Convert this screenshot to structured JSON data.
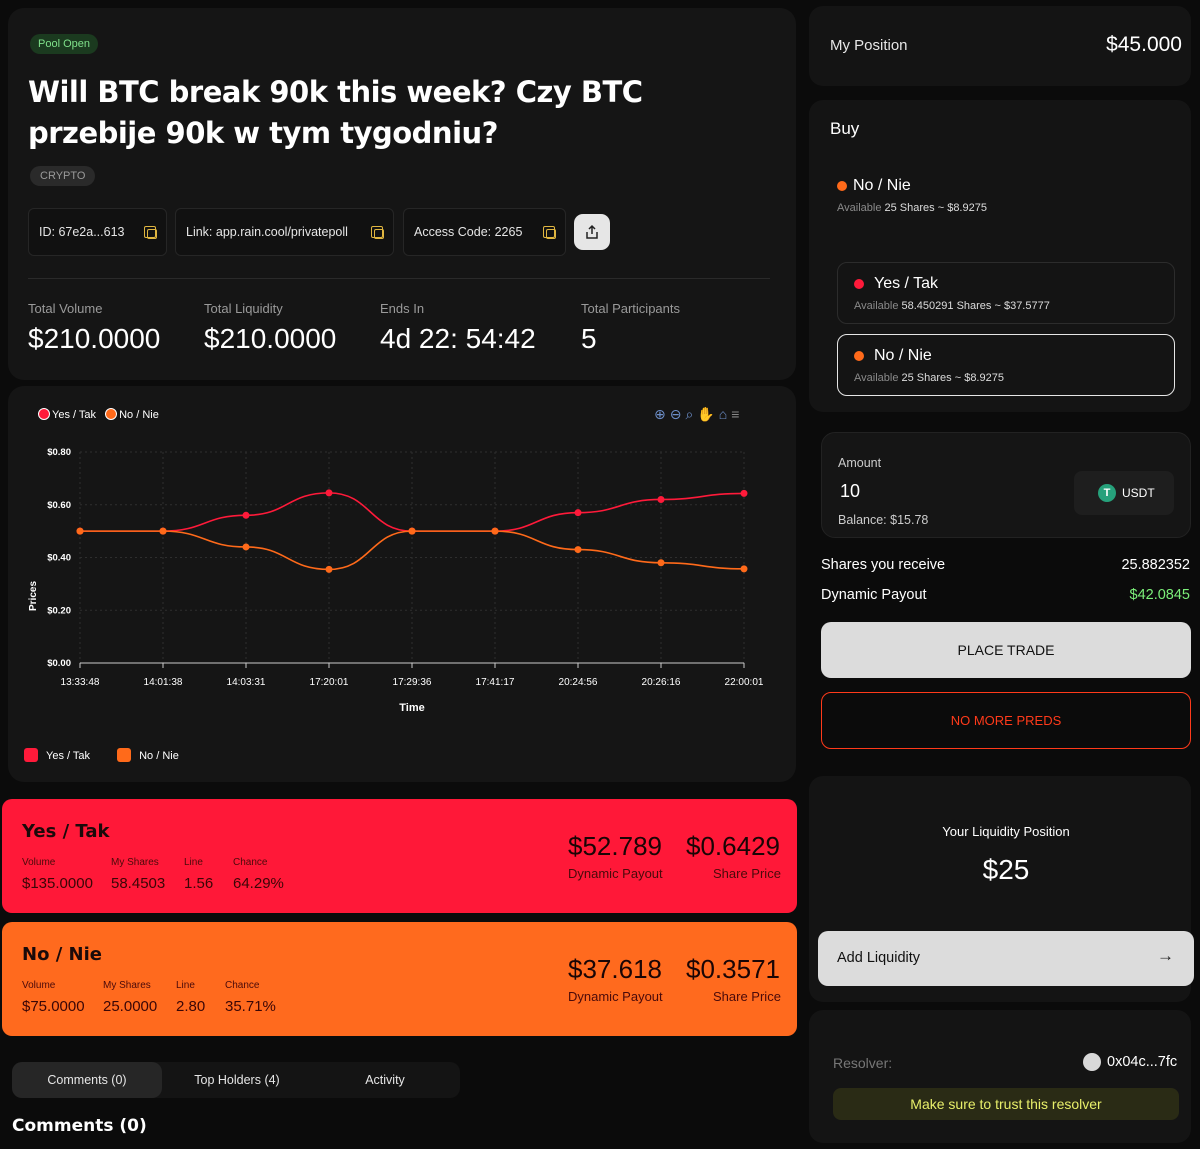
{
  "market": {
    "status_badge": "Pool Open",
    "title": "Will BTC break 90k this week? Czy BTC przebije 90k w tym tygodniu?",
    "category": "CRYPTO",
    "id_label": "ID: 67e2a...613",
    "link_label": "Link: app.rain.cool/privatepoll",
    "access_label": "Access Code: 2265"
  },
  "stats": [
    {
      "label": "Total Volume",
      "value": "$210.0000"
    },
    {
      "label": "Total Liquidity",
      "value": "$210.0000"
    },
    {
      "label": "Ends In",
      "value": "4d 22: 54:42"
    },
    {
      "label": "Total Participants",
      "value": "5"
    }
  ],
  "colors": {
    "yes": "#ff1a3a",
    "no": "#ff6a1a",
    "yes_card": "#ff1838",
    "no_card": "#ff6a1e",
    "payout_green": "#7cf07a"
  },
  "icons": {
    "copy": "copy-icon",
    "share": "share-icon",
    "arrow": "arrow-right-icon",
    "zoom_in": "zoom-in-icon",
    "zoom_out": "zoom-out-icon",
    "search": "search-icon",
    "pan": "hand-icon",
    "home": "home-icon",
    "menu": "menu-icon"
  },
  "chart_data": {
    "type": "line",
    "title": "",
    "xlabel": "Time",
    "ylabel": "Prices",
    "categories": [
      "13:33:48",
      "14:01:38",
      "14:03:31",
      "17:20:01",
      "17:29:36",
      "17:41:17",
      "20:24:56",
      "20:26:16",
      "22:00:01"
    ],
    "series": [
      {
        "name": "Yes / Tak",
        "values": [
          0.5,
          0.5,
          0.56,
          0.645,
          0.5,
          0.5,
          0.57,
          0.62,
          0.643
        ]
      },
      {
        "name": "No / Nie",
        "values": [
          0.5,
          0.5,
          0.44,
          0.355,
          0.5,
          0.5,
          0.43,
          0.38,
          0.357
        ]
      }
    ],
    "ylim": [
      0,
      0.8
    ],
    "y_ticks": [
      "$0.00",
      "$0.20",
      "$0.40",
      "$0.60",
      "$0.80"
    ],
    "legend_top": "top-left",
    "legend_bottom": "bottom-left",
    "grid": true
  },
  "outcomes": [
    {
      "name": "Yes / Tak",
      "volume": "$135.0000",
      "my_shares": "58.4503",
      "line": "1.56",
      "chance": "64.29%",
      "payout": "$52.789",
      "share_price": "$0.6429"
    },
    {
      "name": "No / Nie",
      "volume": "$75.0000",
      "my_shares": "25.0000",
      "line": "2.80",
      "chance": "35.71%",
      "payout": "$37.618",
      "share_price": "$0.3571"
    }
  ],
  "outcome_labels": {
    "volume": "Volume",
    "my_shares": "My Shares",
    "line": "Line",
    "chance": "Chance",
    "payout": "Dynamic Payout",
    "share_price": "Share Price"
  },
  "tabs": [
    {
      "label": "Comments (0)",
      "active": true
    },
    {
      "label": "Top Holders (4)",
      "active": false
    },
    {
      "label": "Activity",
      "active": false
    }
  ],
  "comments_heading": "Comments (0)",
  "position": {
    "label": "My Position",
    "value": "$45.000"
  },
  "buy": {
    "title": "Buy",
    "selected": {
      "name": "No / Nie",
      "avail_prefix": "Available",
      "avail_value": "25 Shares ~ $8.9275"
    },
    "options": [
      {
        "name": "Yes / Tak",
        "avail_prefix": "Available",
        "avail_value": "58.450291 Shares ~ $37.5777"
      },
      {
        "name": "No / Nie",
        "avail_prefix": "Available",
        "avail_value": "25 Shares ~ $8.9275"
      }
    ],
    "amount_label": "Amount",
    "amount_value": "10",
    "currency": "USDT",
    "balance": "Balance: $15.78",
    "shares_label": "Shares you receive",
    "shares_value": "25.882352",
    "payout_label": "Dynamic Payout",
    "payout_value": "$42.0845",
    "place_trade": "PLACE TRADE",
    "no_more": "NO MORE PREDS"
  },
  "liquidity": {
    "label": "Your Liquidity Position",
    "value": "$25",
    "add_label": "Add Liquidity"
  },
  "resolver": {
    "label": "Resolver:",
    "address": "0x04c...7fc",
    "warning": "Make sure to trust this resolver"
  }
}
